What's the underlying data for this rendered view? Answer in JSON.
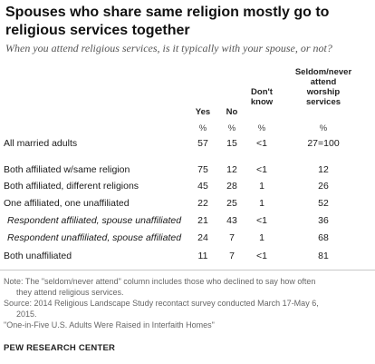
{
  "title": "Spouses who share same religion mostly go to religious services together",
  "subtitle": "When you attend religious services, is it typically with your spouse, or not?",
  "chart_data": {
    "type": "table",
    "columns": [
      {
        "label": "Yes",
        "unit": "%"
      },
      {
        "label": "No",
        "unit": "%"
      },
      {
        "label": "Don't know",
        "unit": "%"
      },
      {
        "label": "Seldom/never attend worship services",
        "unit": "%"
      }
    ],
    "rows": [
      {
        "label": "All married adults",
        "values": [
          "57",
          "15",
          "<1",
          "27=100"
        ],
        "indent": false
      },
      {
        "label": "Both affiliated w/same religion",
        "values": [
          "75",
          "12",
          "<1",
          "12"
        ],
        "indent": false
      },
      {
        "label": "Both affiliated, different religions",
        "values": [
          "45",
          "28",
          "1",
          "26"
        ],
        "indent": false
      },
      {
        "label": "One affiliated, one unaffiliated",
        "values": [
          "22",
          "25",
          "1",
          "52"
        ],
        "indent": false
      },
      {
        "label": "Respondent affiliated, spouse unaffiliated",
        "values": [
          "21",
          "43",
          "<1",
          "36"
        ],
        "indent": true
      },
      {
        "label": "Respondent unaffiliated, spouse affiliated",
        "values": [
          "24",
          "7",
          "1",
          "68"
        ],
        "indent": true
      },
      {
        "label": "Both unaffiliated",
        "values": [
          "11",
          "7",
          "<1",
          "81"
        ],
        "indent": false
      }
    ]
  },
  "notes": {
    "line1": "Note: The \"seldom/never attend\" column includes those who declined to say how often",
    "line2": "they attend religious services.",
    "line3": "Source: 2014 Religious Landscape Study recontact survey conducted March 17-May 6,",
    "line4": "2015.",
    "line5": "\"One-in-Five U.S. Adults Were Raised in Interfaith Homes\""
  },
  "source_label": "PEW RESEARCH CENTER"
}
